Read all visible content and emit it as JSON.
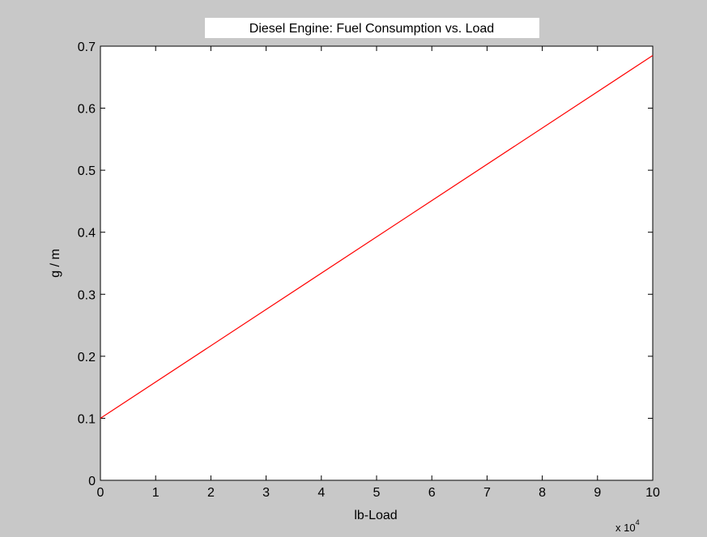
{
  "chart_data": {
    "type": "line",
    "title": "Diesel Engine: Fuel Consumption vs. Load",
    "xlabel": "lb-Load",
    "ylabel": "g / m",
    "x_multiplier": {
      "base": "x 10",
      "exponent": "4"
    },
    "xlim": [
      0,
      10
    ],
    "ylim": [
      0,
      0.7
    ],
    "x_ticks": [
      "0",
      "1",
      "2",
      "3",
      "4",
      "5",
      "6",
      "7",
      "8",
      "9",
      "10"
    ],
    "y_ticks": [
      "0",
      "0.1",
      "0.2",
      "0.3",
      "0.4",
      "0.5",
      "0.6",
      "0.7"
    ],
    "grid": false,
    "series": [
      {
        "x": [
          0,
          10
        ],
        "y": [
          0.1,
          0.685
        ],
        "color": "#ff0000"
      }
    ]
  },
  "colors": {
    "figure_background": "#c8c8c8",
    "axes_background": "#ffffff",
    "line": "#ff0000"
  }
}
